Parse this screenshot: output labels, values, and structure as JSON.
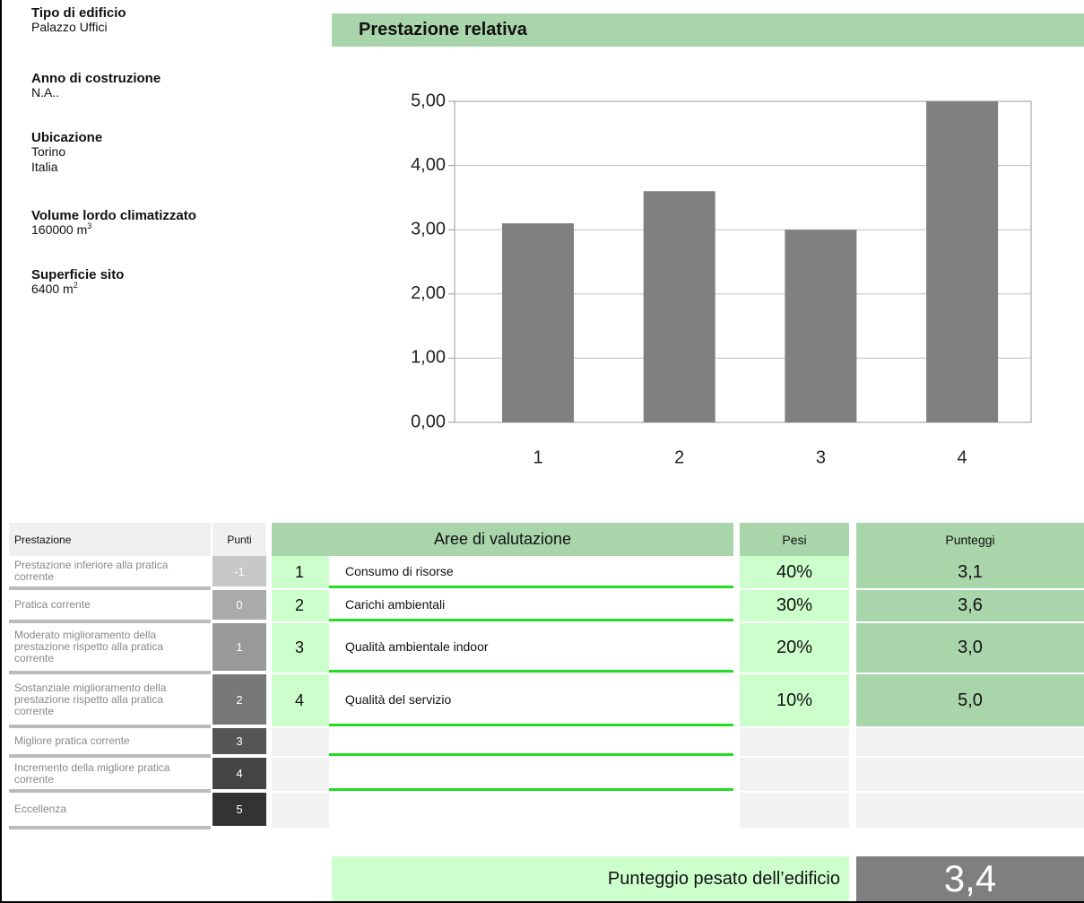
{
  "info": [
    {
      "label": "Tipo di edificio",
      "value": "Palazzo Uffici"
    },
    {
      "label": "Anno di costruzione",
      "value": "N.A.."
    },
    {
      "label": "Ubicazione",
      "value": "Torino",
      "value2": "Italia"
    },
    {
      "label": "Volume lordo climatizzato",
      "value": "160000 m",
      "sup": "3"
    },
    {
      "label": "Superficie sito",
      "value": "6400  m",
      "sup": "2"
    }
  ],
  "chart_data": {
    "type": "bar",
    "title": "Prestazione relativa",
    "categories": [
      "1",
      "2",
      "3",
      "4"
    ],
    "values": [
      3.1,
      3.6,
      3.0,
      5.0
    ],
    "color": "#808080",
    "ylim": [
      0,
      5
    ],
    "yticks": [
      {
        "value": 0,
        "label": "0,00"
      },
      {
        "value": 1,
        "label": "1,00"
      },
      {
        "value": 2,
        "label": "2,00"
      },
      {
        "value": 3,
        "label": "3,00"
      },
      {
        "value": 4,
        "label": "4,00"
      },
      {
        "value": 5,
        "label": "5,00"
      }
    ],
    "grid": true
  },
  "scale": {
    "headers": [
      "Prestazione",
      "Punti"
    ],
    "rows": [
      {
        "label": "Prestazione inferiore alla pratica corrente",
        "points": "-1"
      },
      {
        "label": "Pratica corrente",
        "points": "0"
      },
      {
        "label": "Moderato miglioramento della prestazione rispetto alla pratica corrente",
        "points": "1"
      },
      {
        "label": "Sostanziale miglioramento della prestazione rispetto alla pratica corrente",
        "points": "2"
      },
      {
        "label": "Migliore pratica corrente",
        "points": "3"
      },
      {
        "label": "Incremento della migliore pratica corrente",
        "points": "4"
      },
      {
        "label": "Eccellenza",
        "points": "5"
      }
    ]
  },
  "areas": {
    "headers": [
      "Aree di valutazione",
      "Pesi",
      "Punteggi"
    ],
    "rows": [
      {
        "num": "1",
        "name": "Consumo di risorse",
        "weight": "40%",
        "score": "3,1"
      },
      {
        "num": "2",
        "name": "Carichi ambientali",
        "weight": "30%",
        "score": "3,6"
      },
      {
        "num": "3",
        "name": "Qualità ambientale indoor",
        "weight": "20%",
        "score": "3,0"
      },
      {
        "num": "4",
        "name": "Qualità del servizio",
        "weight": "10%",
        "score": "5,0"
      }
    ]
  },
  "total": {
    "label": "Punteggio pesato dell’edificio",
    "value": "3,4"
  }
}
